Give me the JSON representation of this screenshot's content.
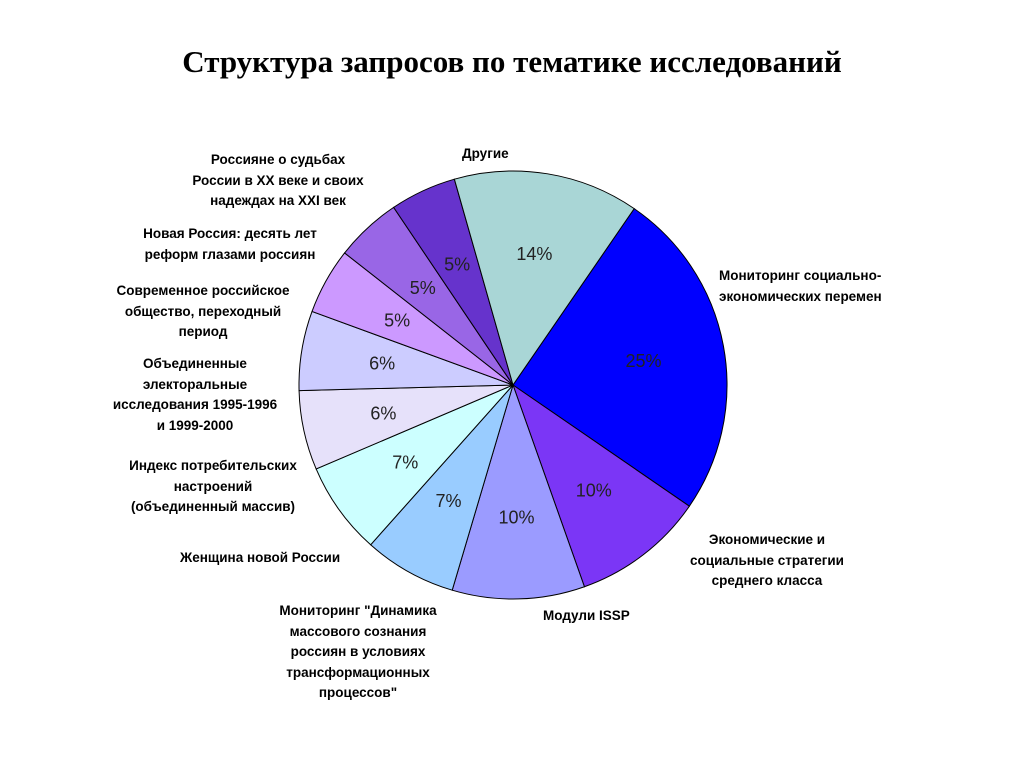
{
  "title": "Структура запросов по тематике исследований",
  "chart_data": {
    "type": "pie",
    "title": "Структура запросов по тематике исследований",
    "slices": [
      {
        "label": "Мониторинг социально-экономических перемен",
        "value": 25,
        "value_label": "25%",
        "color": "#0000FF"
      },
      {
        "label": "Экономические и социальные стратегии среднего класса",
        "value": 10,
        "value_label": "10%",
        "color": "#7B36F6"
      },
      {
        "label": "Модули ISSP",
        "value": 10,
        "value_label": "10%",
        "color": "#9B9BFF"
      },
      {
        "label": "Мониторинг \"Динамика массового сознания россиян в условиях трансформационных процессов\"",
        "value": 7,
        "value_label": "7%",
        "color": "#99CCFF"
      },
      {
        "label": "Женщина новой России",
        "value": 7,
        "value_label": "7%",
        "color": "#CCFFFF"
      },
      {
        "label": "Индекс потребительских настроений (объединенный массив)",
        "value": 6,
        "value_label": "6%",
        "color": "#E6E1FA"
      },
      {
        "label": "Объединенные электоральные исследования 1995-1996 и 1999-2000",
        "value": 6,
        "value_label": "6%",
        "color": "#CCCCFF"
      },
      {
        "label": "Современное российское общество, переходный период",
        "value": 5,
        "value_label": "5%",
        "color": "#CC99FF"
      },
      {
        "label": "Новая Россия: десять лет реформ глазами россиян",
        "value": 5,
        "value_label": "5%",
        "color": "#9966E6"
      },
      {
        "label": "Россияне о судьбах России в XX веке и своих надеждах на XXI век",
        "value": 5,
        "value_label": "5%",
        "color": "#6633CC"
      },
      {
        "label": "Другие",
        "value": 14,
        "value_label": "14%",
        "color": "#A9D6D6"
      }
    ]
  },
  "labels": {
    "monitoring": [
      "Мониторинг социально-",
      "экономических перемен"
    ],
    "economic": [
      "Экономические и",
      "социальные стратегии",
      "среднего класса"
    ],
    "issp": [
      "Модули ISSP"
    ],
    "dynamics": [
      "Мониторинг \"Динамика",
      "массового сознания",
      "россиян в условиях",
      "трансформационных",
      "процессов\""
    ],
    "woman": [
      "Женщина новой России"
    ],
    "index": [
      "Индекс потребительских",
      "настроений",
      "(объединенный массив)"
    ],
    "electoral": [
      "Объединенные",
      "электоральные",
      "исследования 1995-1996",
      "и 1999-2000"
    ],
    "modern": [
      "Современное российское",
      "общество, переходный",
      "период"
    ],
    "newrussia": [
      "Новая Россия: десять лет",
      "реформ глазами россиян"
    ],
    "fates": [
      "Россияне о судьбах",
      "России в XX веке и своих",
      "надеждах на XXI век"
    ],
    "other": [
      "Другие"
    ]
  }
}
